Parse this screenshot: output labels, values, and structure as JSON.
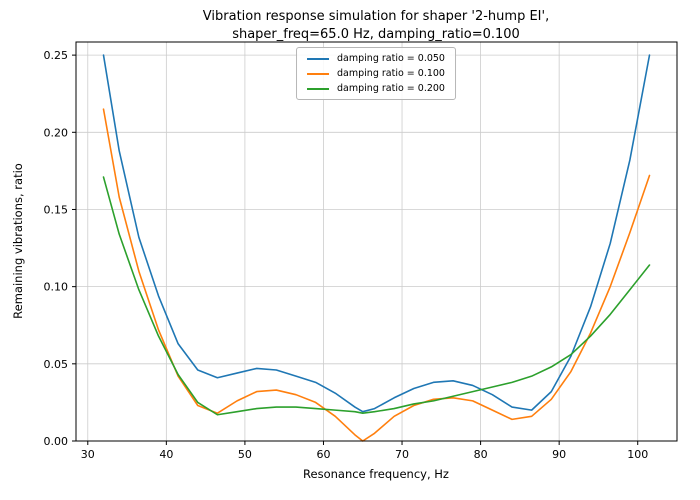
{
  "chart_data": {
    "type": "line",
    "title": "Vibration response simulation for shaper '2-hump EI',\nshaper_freq=65.0 Hz, damping_ratio=0.100",
    "xlabel": "Resonance frequency, Hz",
    "ylabel": "Remaining vibrations, ratio",
    "xlim": [
      28.5,
      105
    ],
    "ylim": [
      0,
      0.2585
    ],
    "xticks": [
      30,
      40,
      50,
      60,
      70,
      80,
      90,
      100
    ],
    "xtick_labels": [
      "30",
      "40",
      "50",
      "60",
      "70",
      "80",
      "90",
      "100"
    ],
    "yticks": [
      0.0,
      0.05,
      0.1,
      0.15,
      0.2,
      0.25
    ],
    "ytick_labels": [
      "0.00",
      "0.05",
      "0.10",
      "0.15",
      "0.20",
      "0.25"
    ],
    "grid": true,
    "legend_position": "upper center",
    "x": [
      32,
      34,
      36.5,
      39,
      41.5,
      44,
      46.5,
      49,
      51.5,
      54,
      56.5,
      59,
      61.5,
      64,
      65,
      66.5,
      69,
      71.5,
      74,
      76.5,
      79,
      81.5,
      84,
      86.5,
      89,
      91.5,
      94,
      96.5,
      99,
      101.5
    ],
    "series": [
      {
        "name": "damping ratio = 0.050",
        "color": "#1f77b4",
        "values": [
          0.25,
          0.188,
          0.132,
          0.094,
          0.063,
          0.046,
          0.041,
          0.044,
          0.047,
          0.046,
          0.042,
          0.038,
          0.031,
          0.022,
          0.019,
          0.021,
          0.028,
          0.034,
          0.038,
          0.039,
          0.036,
          0.03,
          0.022,
          0.02,
          0.032,
          0.055,
          0.087,
          0.128,
          0.182,
          0.25
        ]
      },
      {
        "name": "damping ratio = 0.100",
        "color": "#ff7f0e",
        "values": [
          0.215,
          0.158,
          0.11,
          0.072,
          0.042,
          0.023,
          0.018,
          0.026,
          0.032,
          0.033,
          0.03,
          0.025,
          0.016,
          0.004,
          0.0,
          0.005,
          0.016,
          0.023,
          0.027,
          0.028,
          0.026,
          0.02,
          0.014,
          0.016,
          0.027,
          0.045,
          0.07,
          0.1,
          0.135,
          0.172
        ]
      },
      {
        "name": "damping ratio = 0.200",
        "color": "#2ca02c",
        "values": [
          0.171,
          0.134,
          0.098,
          0.068,
          0.043,
          0.025,
          0.017,
          0.019,
          0.021,
          0.022,
          0.022,
          0.021,
          0.02,
          0.019,
          0.018,
          0.019,
          0.021,
          0.024,
          0.026,
          0.029,
          0.032,
          0.035,
          0.038,
          0.042,
          0.048,
          0.056,
          0.068,
          0.082,
          0.098,
          0.114
        ]
      }
    ]
  }
}
